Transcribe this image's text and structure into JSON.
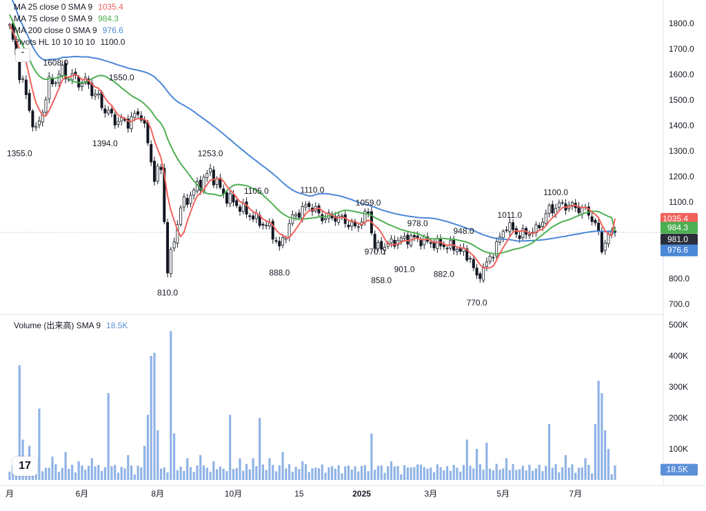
{
  "legend": {
    "ma25": {
      "label": "MA 25 close 0 SMA 9",
      "value": "1035.4",
      "color": "#f0615a"
    },
    "ma75": {
      "label": "MA 75 close 0 SMA 9",
      "value": "984.3",
      "color": "#4caf50"
    },
    "ma200": {
      "label": "MA 200 close 0 SMA 9",
      "value": "976.6",
      "color": "#4a87d6"
    },
    "pivots": {
      "label": "Pivots HL  10 10 10 10",
      "value": "1100.0"
    },
    "volume": {
      "label": "Volume (出来高)  SMA 9",
      "value": "18.5K",
      "color": "#5b8fd8"
    }
  },
  "price_labels": {
    "ma25": "1035.4",
    "ma75": "984.3",
    "last": "981.0",
    "ma200": "976.6",
    "volume": "18.5K"
  },
  "icons": {
    "collapse": "chevron-up-icon",
    "logo": "tradingview-logo"
  },
  "logo_text": "17",
  "chart_data": [
    {
      "type": "candlestick",
      "y_ticks": [
        "700.0",
        "800.0",
        "900.0",
        "1000.0",
        "1100.0",
        "1200.0",
        "1300.0",
        "1400.0",
        "1500.0",
        "1600.0",
        "1700.0",
        "1800.0"
      ],
      "ylim": [
        680,
        1850
      ],
      "x_ticks": [
        "月",
        "6月",
        "8月",
        "10月",
        "15",
        "2025",
        "3月",
        "5月",
        "7月"
      ],
      "x_tick_index": [
        0,
        22,
        45,
        68,
        88,
        107,
        128,
        150,
        172
      ],
      "n_bars": 185,
      "close_anchors": [
        [
          0,
          1780
        ],
        [
          4,
          1560
        ],
        [
          8,
          1370
        ],
        [
          12,
          1560
        ],
        [
          16,
          1610
        ],
        [
          20,
          1580
        ],
        [
          24,
          1560
        ],
        [
          27,
          1500
        ],
        [
          31,
          1430
        ],
        [
          35,
          1410
        ],
        [
          40,
          1450
        ],
        [
          44,
          1200
        ],
        [
          46,
          1230
        ],
        [
          48,
          830
        ],
        [
          52,
          1080
        ],
        [
          57,
          1160
        ],
        [
          61,
          1220
        ],
        [
          65,
          1130
        ],
        [
          70,
          1080
        ],
        [
          75,
          1030
        ],
        [
          79,
          1000
        ],
        [
          82,
          920
        ],
        [
          86,
          1040
        ],
        [
          91,
          1090
        ],
        [
          95,
          1040
        ],
        [
          100,
          1040
        ],
        [
          105,
          1000
        ],
        [
          109,
          1060
        ],
        [
          111,
          920
        ],
        [
          114,
          930
        ],
        [
          118,
          950
        ],
        [
          122,
          960
        ],
        [
          128,
          940
        ],
        [
          132,
          930
        ],
        [
          136,
          920
        ],
        [
          140,
          880
        ],
        [
          142,
          800
        ],
        [
          146,
          880
        ],
        [
          151,
          1010
        ],
        [
          155,
          970
        ],
        [
          160,
          990
        ],
        [
          164,
          1070
        ],
        [
          168,
          1090
        ],
        [
          172,
          1080
        ],
        [
          176,
          1060
        ],
        [
          179,
          980
        ],
        [
          180,
          920
        ],
        [
          183,
          981
        ],
        [
          184,
          981
        ]
      ],
      "pivots": [
        {
          "i": 3,
          "label": "1355.0",
          "pos": "low",
          "value": 1355
        },
        {
          "i": 14,
          "label": "1608.0",
          "pos": "high",
          "value": 1608
        },
        {
          "i": 34,
          "label": "1550.0",
          "pos": "high",
          "value": 1550
        },
        {
          "i": 29,
          "label": "1394.0",
          "pos": "low",
          "value": 1394
        },
        {
          "i": 48,
          "label": "810.0",
          "pos": "low",
          "value": 810
        },
        {
          "i": 61,
          "label": "1253.0",
          "pos": "high",
          "value": 1253
        },
        {
          "i": 75,
          "label": "1105.0",
          "pos": "high",
          "value": 1105
        },
        {
          "i": 82,
          "label": "888.0",
          "pos": "low",
          "value": 888
        },
        {
          "i": 92,
          "label": "1110.0",
          "pos": "high",
          "value": 1110
        },
        {
          "i": 109,
          "label": "1059.0",
          "pos": "high",
          "value": 1059
        },
        {
          "i": 111,
          "label": "970.0",
          "pos": "low",
          "value": 970
        },
        {
          "i": 113,
          "label": "858.0",
          "pos": "low",
          "value": 858
        },
        {
          "i": 120,
          "label": "901.0",
          "pos": "low",
          "value": 901
        },
        {
          "i": 124,
          "label": "978.0",
          "pos": "high",
          "value": 978
        },
        {
          "i": 132,
          "label": "882.0",
          "pos": "low",
          "value": 882
        },
        {
          "i": 138,
          "label": "948.0",
          "pos": "high",
          "value": 948
        },
        {
          "i": 142,
          "label": "770.0",
          "pos": "low",
          "value": 770
        },
        {
          "i": 152,
          "label": "1011.0",
          "pos": "high",
          "value": 1011
        },
        {
          "i": 166,
          "label": "1100.0",
          "pos": "high",
          "value": 1100
        }
      ]
    },
    {
      "type": "bar",
      "series_name": "Volume",
      "y_ticks": [
        "100K",
        "200K",
        "300K",
        "400K",
        "500K"
      ],
      "ylim": [
        0,
        520000
      ],
      "spikes": [
        [
          3,
          370000
        ],
        [
          4,
          130000
        ],
        [
          6,
          110000
        ],
        [
          9,
          230000
        ],
        [
          13,
          75000
        ],
        [
          17,
          90000
        ],
        [
          21,
          60000
        ],
        [
          25,
          70000
        ],
        [
          30,
          280000
        ],
        [
          36,
          80000
        ],
        [
          41,
          110000
        ],
        [
          42,
          210000
        ],
        [
          43,
          400000
        ],
        [
          44,
          410000
        ],
        [
          45,
          160000
        ],
        [
          49,
          480000
        ],
        [
          50,
          150000
        ],
        [
          54,
          70000
        ],
        [
          58,
          80000
        ],
        [
          62,
          60000
        ],
        [
          67,
          210000
        ],
        [
          70,
          70000
        ],
        [
          74,
          70000
        ],
        [
          76,
          200000
        ],
        [
          79,
          70000
        ],
        [
          83,
          90000
        ],
        [
          89,
          60000
        ],
        [
          95,
          50000
        ],
        [
          110,
          150000
        ],
        [
          116,
          60000
        ],
        [
          124,
          50000
        ],
        [
          139,
          130000
        ],
        [
          142,
          100000
        ],
        [
          145,
          120000
        ],
        [
          151,
          70000
        ],
        [
          164,
          180000
        ],
        [
          169,
          80000
        ],
        [
          175,
          70000
        ],
        [
          178,
          180000
        ],
        [
          179,
          320000
        ],
        [
          180,
          280000
        ],
        [
          181,
          160000
        ],
        [
          182,
          100000
        ],
        [
          183,
          18500
        ]
      ]
    }
  ]
}
